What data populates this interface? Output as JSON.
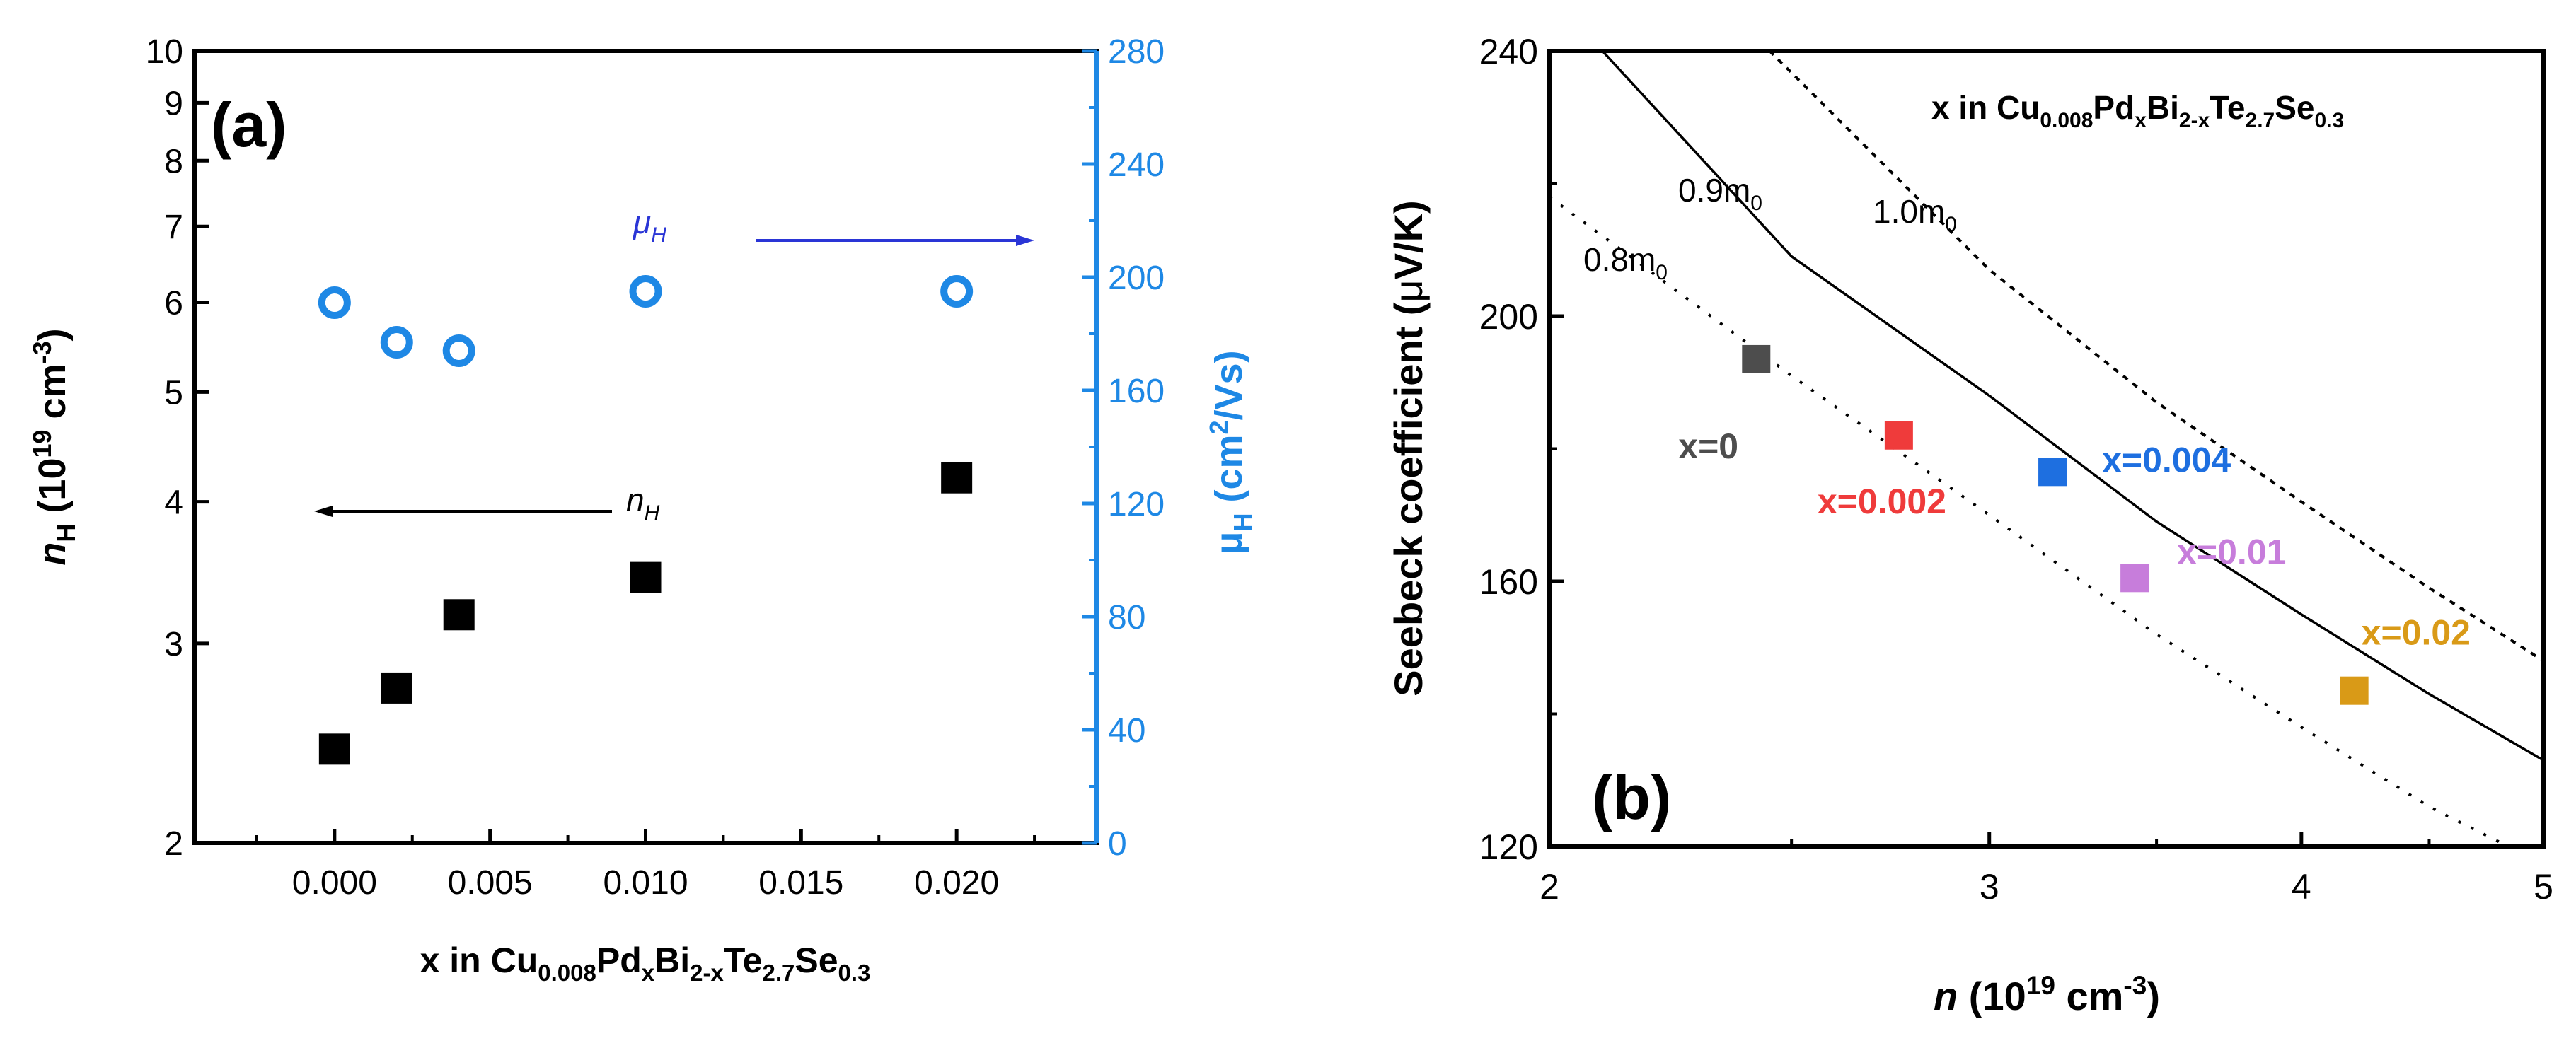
{
  "chart_data": [
    {
      "type": "scatter",
      "panel_label": "(a)",
      "xlabel": {
        "main": "x in Cu",
        "s1": "0.008",
        "m1": "Pd",
        "s2": "x",
        "m2": "Bi",
        "s3": "2-x",
        "m3": "Te",
        "s4": "2.7",
        "m4": "Se",
        "s5": "0.3"
      },
      "ylabel_left": {
        "a": "n",
        "b": "H",
        "c": " (10",
        "d": "19",
        "e": " cm",
        "f": "-3",
        "g": ")"
      },
      "ylabel_right": {
        "a": "μ",
        "b": "H",
        "c": " (cm",
        "d": "2",
        "e": "/Vs)"
      },
      "xlim": [
        -0.0045,
        0.0245
      ],
      "ylim_left": [
        2,
        10
      ],
      "ylim_left_scale": "log",
      "ylim_right": [
        0,
        280
      ],
      "x_ticks": [
        "0.000",
        "0.005",
        "0.010",
        "0.015",
        "0.020"
      ],
      "y_left_ticks": [
        "2",
        "3",
        "4",
        "5",
        "6",
        "7",
        "8",
        "9",
        "10"
      ],
      "y_right_ticks": [
        "0",
        "40",
        "80",
        "120",
        "160",
        "200",
        "240",
        "280"
      ],
      "series": [
        {
          "name": "n_H",
          "axis": "left",
          "color": "#000000",
          "marker": "square",
          "x": [
            0,
            0.002,
            0.004,
            0.01,
            0.02
          ],
          "y": [
            2.42,
            2.74,
            3.18,
            3.43,
            4.2
          ]
        },
        {
          "name": "μ_H",
          "axis": "right",
          "color": "#1e88e5",
          "marker": "open-circle",
          "x": [
            0,
            0.002,
            0.004,
            0.01,
            0.02
          ],
          "y": [
            191,
            177,
            174,
            195,
            195
          ]
        }
      ],
      "annotations": {
        "nH_a": "n",
        "nH_b": "H",
        "muH_a": "μ",
        "muH_b": "H"
      },
      "colors": {
        "left_axis": "#000000",
        "right_axis": "#1e88e5",
        "mu_arrow": "#2a35d6"
      }
    },
    {
      "type": "scatter",
      "panel_label": "(b)",
      "xlabel": {
        "a": "n",
        "b": " (10",
        "c": "19",
        "d": " cm",
        "e": "-3",
        "f": ")"
      },
      "ylabel": {
        "a": "Seebeck coefficient (",
        "b": "μ",
        "c": "V/K)"
      },
      "xlim": [
        2,
        5
      ],
      "xscale": "log",
      "ylim": [
        120,
        240
      ],
      "x_ticks": [
        "2",
        "3",
        "4",
        "5"
      ],
      "y_ticks": [
        "120",
        "160",
        "200",
        "240"
      ],
      "title": {
        "main": "x in Cu",
        "s1": "0.008",
        "m1": "Pd",
        "s2": "x",
        "m2": "Bi",
        "s3": "2-x",
        "m3": "Te",
        "s4": "2.7",
        "m4": "Se",
        "s5": "0.3"
      },
      "points": [
        {
          "label": "x=0",
          "x": 2.42,
          "y": 193.5,
          "color": "#4d4d4d"
        },
        {
          "label": "x=0.002",
          "x": 2.76,
          "y": 182,
          "color": "#ef3b3b"
        },
        {
          "label": "x=0.004",
          "x": 3.18,
          "y": 176.5,
          "color": "#1e6fe0"
        },
        {
          "label": "x=0.01",
          "x": 3.43,
          "y": 160.5,
          "color": "#c77ddb"
        },
        {
          "label": "x=0.02",
          "x": 4.2,
          "y": 143.5,
          "color": "#d99a17"
        }
      ],
      "curves": [
        {
          "name": "0.8m",
          "sub": "0",
          "style": "dotted-sparse",
          "x": [
            2.0,
            2.5,
            3.0,
            3.5,
            4.0,
            4.5,
            4.9
          ],
          "y": [
            218,
            191,
            170,
            152,
            138,
            126,
            119
          ]
        },
        {
          "name": "0.9m",
          "sub": "0",
          "style": "solid",
          "x": [
            2.1,
            2.5,
            3.0,
            3.5,
            4.0,
            4.5,
            5.0
          ],
          "y": [
            240,
            209,
            188,
            169,
            155,
            143,
            133
          ]
        },
        {
          "name": "1.0m",
          "sub": "0",
          "style": "dotted",
          "x": [
            2.45,
            3.0,
            3.5,
            4.0,
            4.5,
            5.0
          ],
          "y": [
            240,
            207,
            187,
            172,
            159,
            148
          ]
        }
      ]
    }
  ]
}
